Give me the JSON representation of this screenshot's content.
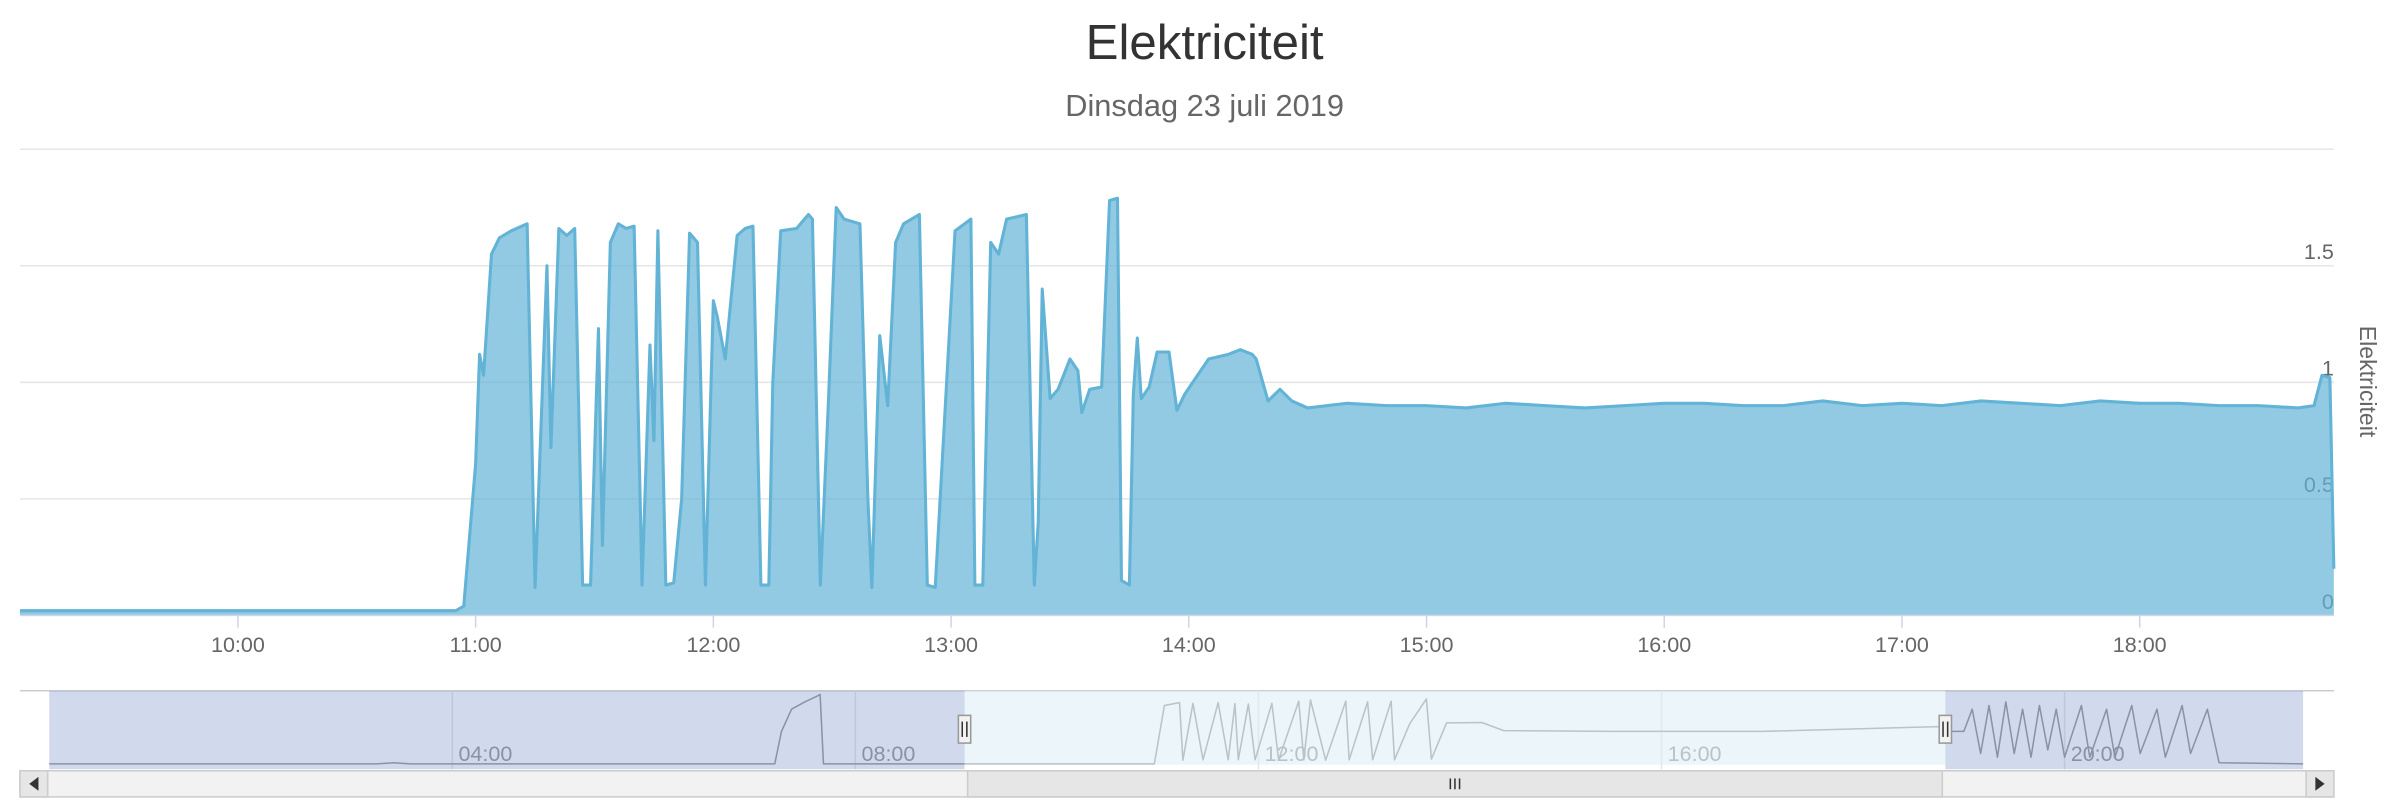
{
  "chart_data": [
    {
      "type": "area",
      "title": "Elektriciteit",
      "subtitle": "Dinsdag 23 juli 2019",
      "y_axis_title": "Elektriciteit",
      "color": "#62b3d6",
      "grid": true,
      "xlim": [
        "09:05",
        "18:49"
      ],
      "ylim": [
        0,
        2
      ],
      "xticks": [
        "10:00",
        "11:00",
        "12:00",
        "13:00",
        "14:00",
        "15:00",
        "16:00",
        "17:00",
        "18:00"
      ],
      "yticks": [
        0,
        0.5,
        1,
        1.5
      ],
      "x": [
        "09:05",
        "10:55",
        "10:57",
        "11:00",
        "11:01",
        "11:02",
        "11:04",
        "11:06",
        "11:09",
        "11:13",
        "11:15",
        "11:18",
        "11:19",
        "11:21",
        "11:23",
        "11:25",
        "11:27",
        "11:29",
        "11:31",
        "11:32",
        "11:34",
        "11:36",
        "11:38",
        "11:40",
        "11:42",
        "11:44",
        "11:45",
        "11:46",
        "11:48",
        "11:50",
        "11:52",
        "11:54",
        "11:56",
        "11:58",
        "12:00",
        "12:01",
        "12:03",
        "12:06",
        "12:08",
        "12:10",
        "12:12",
        "12:14",
        "12:15",
        "12:17",
        "12:21",
        "12:24",
        "12:25",
        "12:27",
        "12:29",
        "12:31",
        "12:33",
        "12:37",
        "12:39",
        "12:40",
        "12:42",
        "12:44",
        "12:46",
        "12:48",
        "12:52",
        "12:54",
        "12:56",
        "13:01",
        "13:05",
        "13:06",
        "13:08",
        "13:10",
        "13:12",
        "13:14",
        "13:19",
        "13:21",
        "13:22",
        "13:23",
        "13:25",
        "13:27",
        "13:30",
        "13:32",
        "13:33",
        "13:35",
        "13:38",
        "13:40",
        "13:42",
        "13:43",
        "13:45",
        "13:46",
        "13:47",
        "13:48",
        "13:50",
        "13:52",
        "13:55",
        "13:57",
        "13:59",
        "14:05",
        "14:10",
        "14:13",
        "14:16",
        "14:17",
        "14:20",
        "14:23",
        "14:26",
        "14:30",
        "14:40",
        "14:50",
        "15:00",
        "15:10",
        "15:20",
        "15:30",
        "15:40",
        "15:50",
        "16:00",
        "16:10",
        "16:20",
        "16:30",
        "16:40",
        "16:50",
        "17:00",
        "17:10",
        "17:20",
        "17:30",
        "17:40",
        "17:50",
        "18:00",
        "18:10",
        "18:20",
        "18:30",
        "18:40",
        "18:44",
        "18:46",
        "18:48",
        "18:49"
      ],
      "values": [
        0.02,
        0.02,
        0.04,
        0.65,
        1.12,
        1.03,
        1.55,
        1.62,
        1.65,
        1.68,
        0.12,
        1.5,
        0.72,
        1.66,
        1.63,
        1.66,
        0.13,
        0.13,
        1.23,
        0.3,
        1.6,
        1.68,
        1.66,
        1.67,
        0.13,
        1.16,
        0.75,
        1.65,
        0.13,
        0.14,
        0.5,
        1.64,
        1.6,
        0.13,
        1.35,
        1.28,
        1.1,
        1.63,
        1.66,
        1.67,
        0.13,
        0.13,
        1.0,
        1.65,
        1.66,
        1.72,
        1.7,
        0.13,
        0.9,
        1.75,
        1.7,
        1.68,
        0.5,
        0.12,
        1.2,
        0.9,
        1.6,
        1.68,
        1.72,
        0.13,
        0.12,
        1.65,
        1.7,
        0.13,
        0.13,
        1.6,
        1.55,
        1.7,
        1.72,
        0.13,
        0.4,
        1.4,
        0.93,
        0.97,
        1.1,
        1.05,
        0.87,
        0.97,
        0.98,
        1.78,
        1.79,
        0.15,
        0.13,
        0.95,
        1.19,
        0.93,
        0.98,
        1.13,
        1.13,
        0.88,
        0.95,
        1.1,
        1.12,
        1.14,
        1.12,
        1.1,
        0.92,
        0.97,
        0.92,
        0.89,
        0.91,
        0.9,
        0.9,
        0.89,
        0.91,
        0.9,
        0.89,
        0.9,
        0.91,
        0.91,
        0.9,
        0.9,
        0.92,
        0.9,
        0.91,
        0.9,
        0.92,
        0.91,
        0.9,
        0.92,
        0.91,
        0.91,
        0.9,
        0.9,
        0.89,
        0.9,
        1.03,
        1.02,
        0.2
      ]
    },
    {
      "type": "area",
      "color": "#9a9a9a",
      "xlim": [
        "00:00",
        "22:22"
      ],
      "ylim": [
        0,
        2
      ],
      "xticks": [
        "04:00",
        "08:00",
        "12:00",
        "16:00",
        "20:00"
      ],
      "x": [
        "00:00",
        "03:15",
        "03:25",
        "03:35",
        "07:12",
        "07:16",
        "07:22",
        "07:30",
        "07:37",
        "07:39",
        "07:41",
        "10:58",
        "11:04",
        "11:13",
        "11:15",
        "11:21",
        "11:27",
        "11:36",
        "11:42",
        "11:46",
        "11:48",
        "11:54",
        "11:58",
        "12:08",
        "12:12",
        "12:24",
        "12:27",
        "12:31",
        "12:40",
        "12:52",
        "12:54",
        "13:05",
        "13:08",
        "13:19",
        "13:21",
        "13:30",
        "13:40",
        "13:43",
        "13:52",
        "14:13",
        "14:26",
        "15:30",
        "17:00",
        "18:46",
        "18:52",
        "19:00",
        "19:05",
        "19:10",
        "19:15",
        "19:20",
        "19:25",
        "19:30",
        "19:35",
        "19:40",
        "19:45",
        "19:50",
        "19:55",
        "20:00",
        "20:10",
        "20:15",
        "20:25",
        "20:30",
        "20:40",
        "20:45",
        "20:55",
        "21:00",
        "21:10",
        "21:15",
        "21:25",
        "21:32",
        "22:22"
      ],
      "values": [
        0.02,
        0.02,
        0.05,
        0.02,
        0.02,
        0.9,
        1.5,
        1.7,
        1.85,
        1.9,
        0.02,
        0.02,
        1.6,
        1.68,
        0.12,
        1.66,
        0.13,
        1.68,
        0.13,
        1.65,
        0.13,
        1.64,
        0.13,
        1.66,
        0.13,
        1.72,
        0.13,
        1.75,
        0.12,
        1.72,
        0.13,
        1.7,
        0.13,
        1.72,
        0.13,
        1.1,
        1.78,
        0.15,
        1.13,
        1.14,
        0.92,
        0.9,
        0.9,
        1.03,
        0.9,
        0.9,
        1.5,
        0.3,
        1.6,
        0.2,
        1.7,
        0.3,
        1.5,
        0.2,
        1.6,
        0.4,
        1.5,
        0.2,
        1.6,
        0.2,
        1.5,
        0.2,
        1.6,
        0.3,
        1.5,
        0.2,
        1.6,
        0.3,
        1.5,
        0.05,
        0.02
      ]
    }
  ]
}
